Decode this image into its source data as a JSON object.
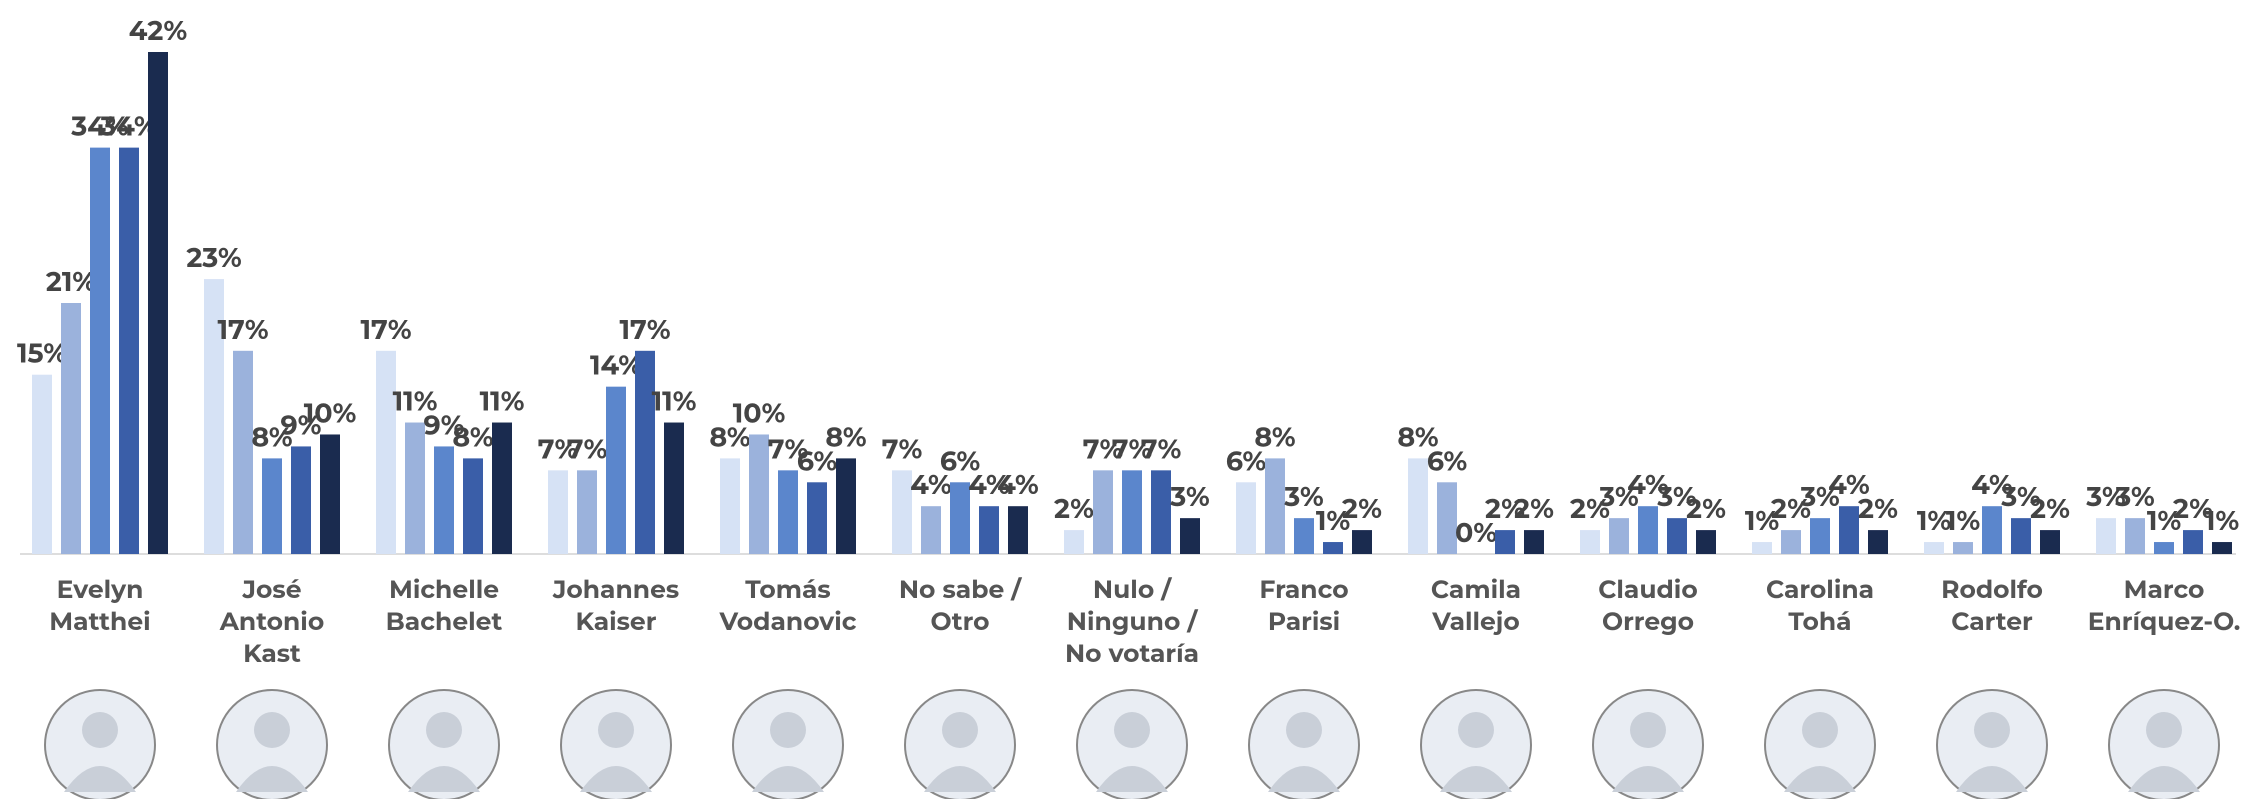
{
  "chart_data": {
    "type": "bar",
    "categories": [
      [
        "Evelyn",
        "Matthei"
      ],
      [
        "José",
        "Antonio",
        "Kast"
      ],
      [
        "Michelle",
        "Bachelet"
      ],
      [
        "Johannes",
        "Kaiser"
      ],
      [
        "Tomás",
        "Vodanovic"
      ],
      [
        "No sabe /",
        "Otro"
      ],
      [
        "Nulo /",
        "Ninguno /",
        "No votaría"
      ],
      [
        "Franco",
        "Parisi"
      ],
      [
        "Camila",
        "Vallejo"
      ],
      [
        "Claudio",
        "Orrego"
      ],
      [
        "Carolina",
        "Tohá"
      ],
      [
        "Rodolfo",
        "Carter"
      ],
      [
        "Marco",
        "Enríquez-O."
      ]
    ],
    "series": [
      {
        "color": "#d6e2f5",
        "values": [
          15,
          23,
          17,
          7,
          8,
          7,
          2,
          6,
          8,
          2,
          1,
          1,
          3
        ],
        "value_labels": [
          "15%",
          "23%",
          "17%",
          "7%",
          "8%",
          "7%",
          "2%",
          "6%",
          "8%",
          "2%",
          "1%",
          "1%",
          "3%"
        ]
      },
      {
        "color": "#9bb2dc",
        "values": [
          21,
          17,
          11,
          7,
          10,
          4,
          7,
          8,
          6,
          3,
          2,
          1,
          3
        ],
        "value_labels": [
          "21%",
          "17%",
          "11%",
          "7%",
          "10%",
          "4%",
          "7%",
          "8%",
          "6%",
          "3%",
          "2%",
          "1%",
          "3%"
        ]
      },
      {
        "color": "#5b86cc",
        "values": [
          34,
          8,
          9,
          14,
          7,
          6,
          7,
          3,
          0,
          4,
          3,
          4,
          1
        ],
        "value_labels": [
          "34%",
          "8%",
          "9%",
          "14%",
          "7%",
          "6%",
          "7%",
          "3%",
          "0%",
          "4%",
          "3%",
          "4%",
          "1%"
        ]
      },
      {
        "color": "#3a5ea8",
        "values": [
          34,
          9,
          8,
          17,
          6,
          4,
          7,
          1,
          2,
          3,
          4,
          3,
          2
        ],
        "value_labels": [
          "34%",
          "9%",
          "8%",
          "17%",
          "6%",
          "4%",
          "7%",
          "1%",
          "2%",
          "3%",
          "4%",
          "3%",
          "2%"
        ]
      },
      {
        "color": "#1a2b4f",
        "values": [
          42,
          10,
          11,
          11,
          8,
          4,
          3,
          2,
          2,
          2,
          2,
          2,
          1
        ],
        "value_labels": [
          "42%",
          "10%",
          "11%",
          "11%",
          "8%",
          "4%",
          "3%",
          "2%",
          "2%",
          "2%",
          "2%",
          "2%",
          "1%"
        ]
      }
    ]
  }
}
